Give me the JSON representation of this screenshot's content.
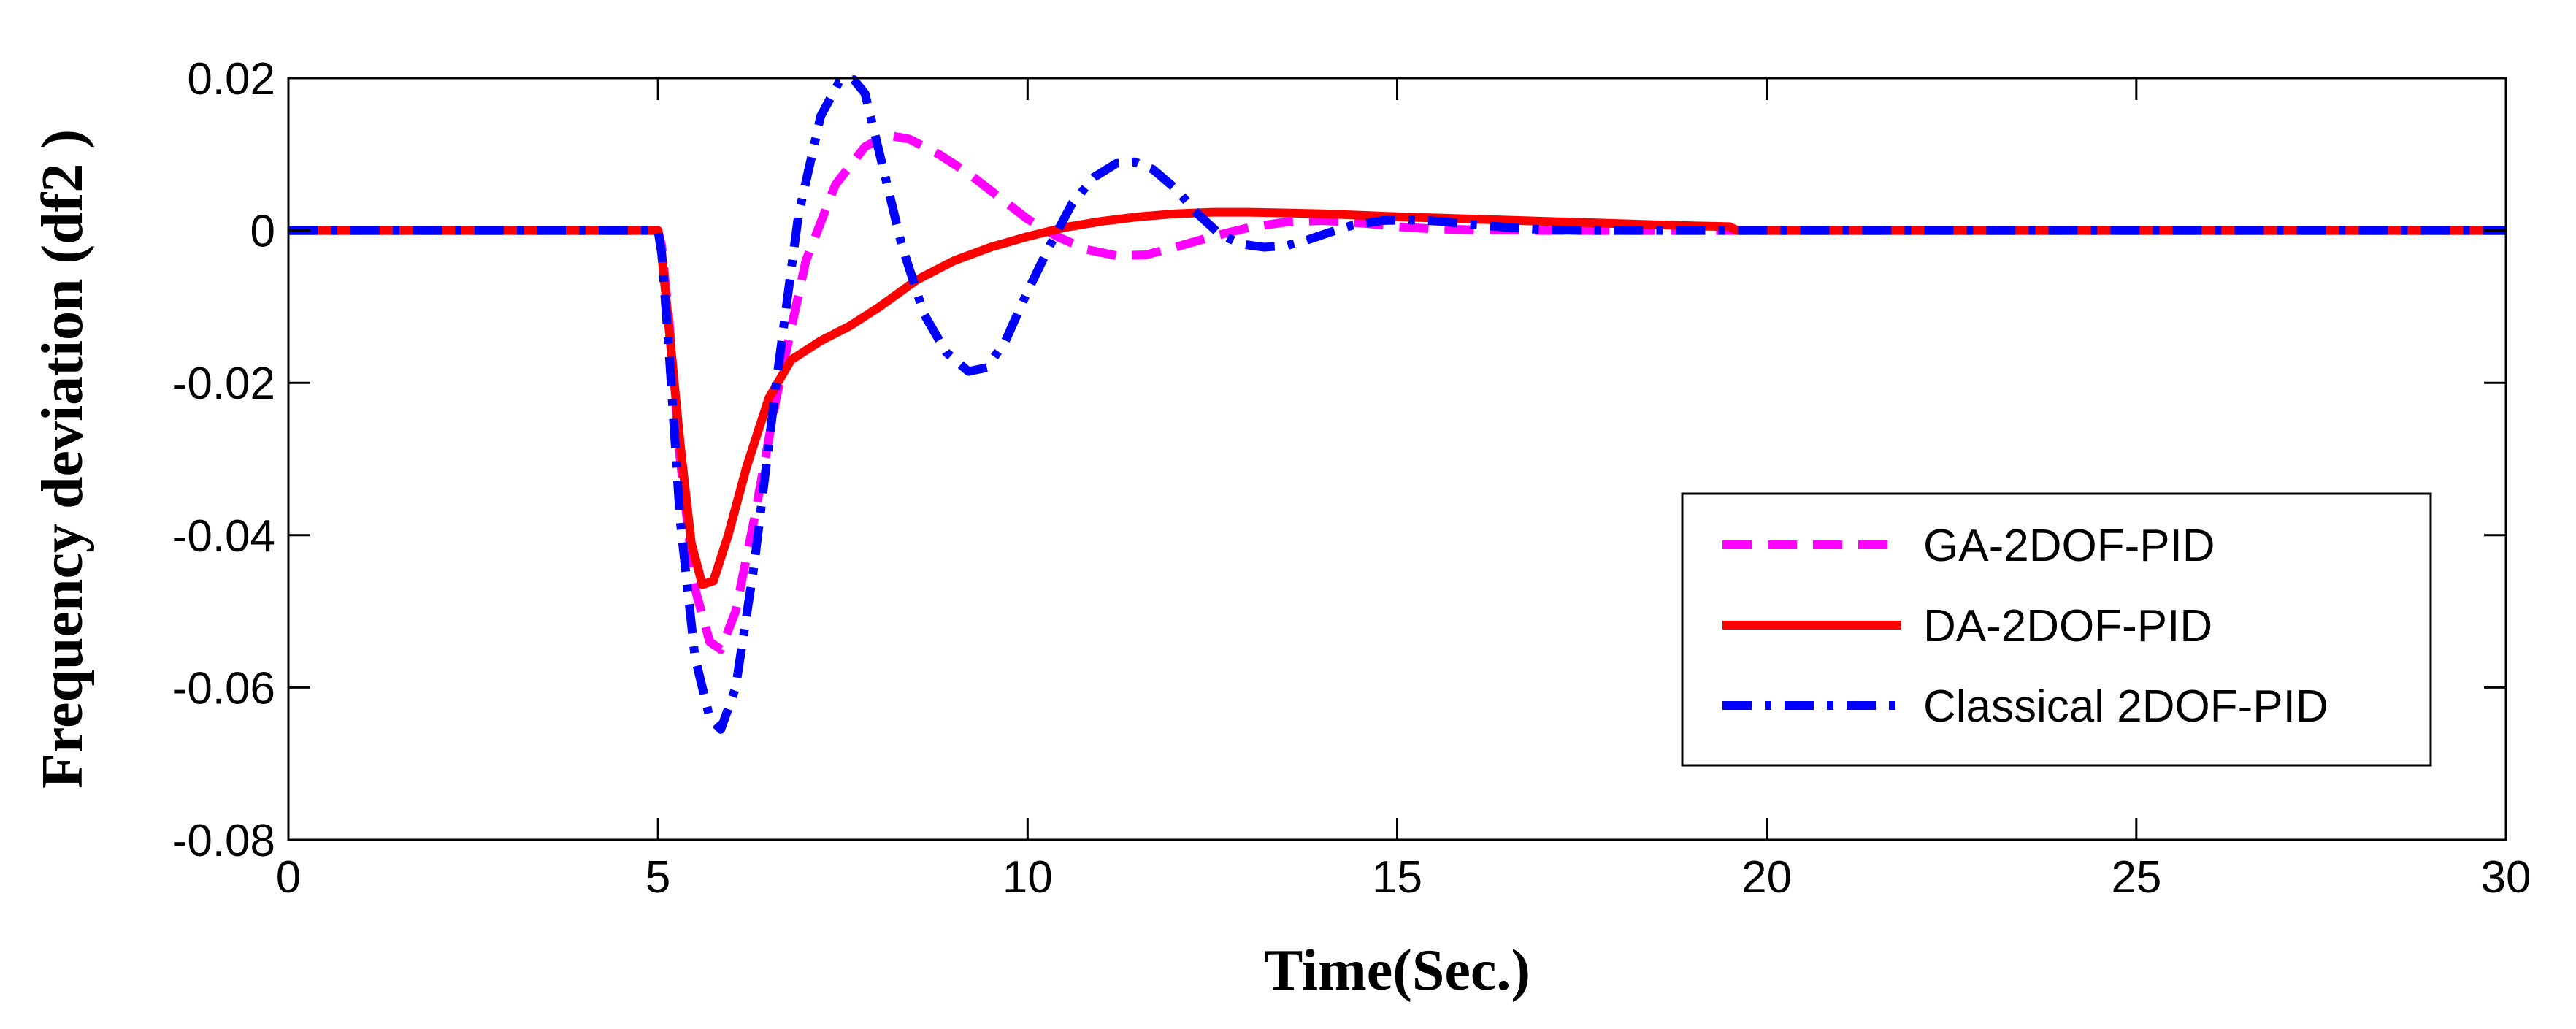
{
  "chart_data": {
    "type": "line",
    "title": "",
    "xlabel": "Time(Sec.)",
    "ylabel": "Frequency deviation (df2 )",
    "xlim": [
      0,
      30
    ],
    "ylim": [
      -0.08,
      0.02
    ],
    "xticks": [
      0,
      5,
      10,
      15,
      20,
      25,
      30
    ],
    "yticks": [
      0.02,
      0,
      -0.02,
      -0.04,
      -0.06,
      -0.08
    ],
    "xtick_labels": [
      "0",
      "5",
      "10",
      "15",
      "20",
      "25",
      "30"
    ],
    "ytick_labels": [
      "0.02",
      "0",
      "-0.02",
      "-0.04",
      "-0.06",
      "-0.08"
    ],
    "grid": false,
    "legend_position": "bottom-right",
    "series": [
      {
        "name": "GA-2DOF-PID",
        "color": "#ff00ff",
        "style": "dashed",
        "x": [
          0,
          5.0,
          5.05,
          5.15,
          5.3,
          5.5,
          5.7,
          5.85,
          6.05,
          6.3,
          6.6,
          7.0,
          7.4,
          7.8,
          8.1,
          8.4,
          8.8,
          9.2,
          9.6,
          10.0,
          10.4,
          10.8,
          11.2,
          11.6,
          12.0,
          12.5,
          13.0,
          13.5,
          14.0,
          14.5,
          15.0,
          15.5,
          16.0,
          16.5,
          17.0,
          30
        ],
        "y": [
          0,
          0,
          -0.002,
          -0.012,
          -0.03,
          -0.047,
          -0.054,
          -0.055,
          -0.05,
          -0.038,
          -0.022,
          -0.004,
          0.006,
          0.011,
          0.0125,
          0.012,
          0.01,
          0.0075,
          0.0045,
          0.0015,
          -0.0008,
          -0.0025,
          -0.0033,
          -0.0032,
          -0.0022,
          -0.0008,
          0.0004,
          0.0011,
          0.0013,
          0.001,
          0.0005,
          0.0002,
          0.0001,
          0.0001,
          0,
          0
        ]
      },
      {
        "name": "DA-2DOF-PID",
        "color": "#ff0000",
        "style": "solid",
        "x": [
          0,
          5.0,
          5.05,
          5.15,
          5.3,
          5.45,
          5.6,
          5.75,
          5.95,
          6.2,
          6.5,
          6.8,
          7.2,
          7.6,
          8.0,
          8.5,
          9.0,
          9.5,
          10.0,
          10.5,
          11.0,
          11.5,
          12.0,
          12.5,
          13.0,
          13.5,
          14.0,
          14.5,
          15.0,
          16.0,
          17.0,
          18.0,
          19.0,
          19.5,
          19.6,
          30
        ],
        "y": [
          0,
          0,
          -0.003,
          -0.013,
          -0.028,
          -0.041,
          -0.0465,
          -0.046,
          -0.04,
          -0.031,
          -0.022,
          -0.017,
          -0.0145,
          -0.0125,
          -0.01,
          -0.0065,
          -0.004,
          -0.0022,
          -0.0008,
          0.0004,
          0.0012,
          0.0018,
          0.0022,
          0.0024,
          0.0024,
          0.0023,
          0.0022,
          0.002,
          0.0018,
          0.0015,
          0.0012,
          0.0009,
          0.0006,
          0.0005,
          0,
          0
        ]
      },
      {
        "name": "Classical 2DOF-PID",
        "color": "#0000ff",
        "style": "dashdot",
        "x": [
          0,
          5.0,
          5.05,
          5.15,
          5.3,
          5.5,
          5.7,
          5.85,
          6.05,
          6.3,
          6.6,
          6.9,
          7.2,
          7.45,
          7.65,
          7.8,
          8.0,
          8.3,
          8.6,
          8.9,
          9.2,
          9.45,
          9.7,
          10.0,
          10.3,
          10.6,
          10.9,
          11.2,
          11.45,
          11.7,
          12.0,
          12.3,
          12.6,
          12.9,
          13.2,
          13.5,
          13.8,
          14.1,
          14.4,
          14.8,
          15.2,
          15.6,
          16.0,
          16.5,
          17.0,
          17.5,
          18.0,
          30
        ],
        "y": [
          0,
          0,
          -0.003,
          -0.016,
          -0.038,
          -0.056,
          -0.064,
          -0.0655,
          -0.06,
          -0.044,
          -0.02,
          0.002,
          0.015,
          0.0195,
          0.0198,
          0.018,
          0.01,
          -0.002,
          -0.011,
          -0.016,
          -0.0185,
          -0.018,
          -0.0145,
          -0.008,
          -0.002,
          0.0035,
          0.007,
          0.0088,
          0.009,
          0.008,
          0.0055,
          0.0022,
          -0.0005,
          -0.0018,
          -0.0022,
          -0.002,
          -0.0012,
          -0.0002,
          0.0007,
          0.0013,
          0.0014,
          0.0012,
          0.0008,
          0.0004,
          0.0001,
          0,
          0,
          0
        ]
      }
    ]
  }
}
